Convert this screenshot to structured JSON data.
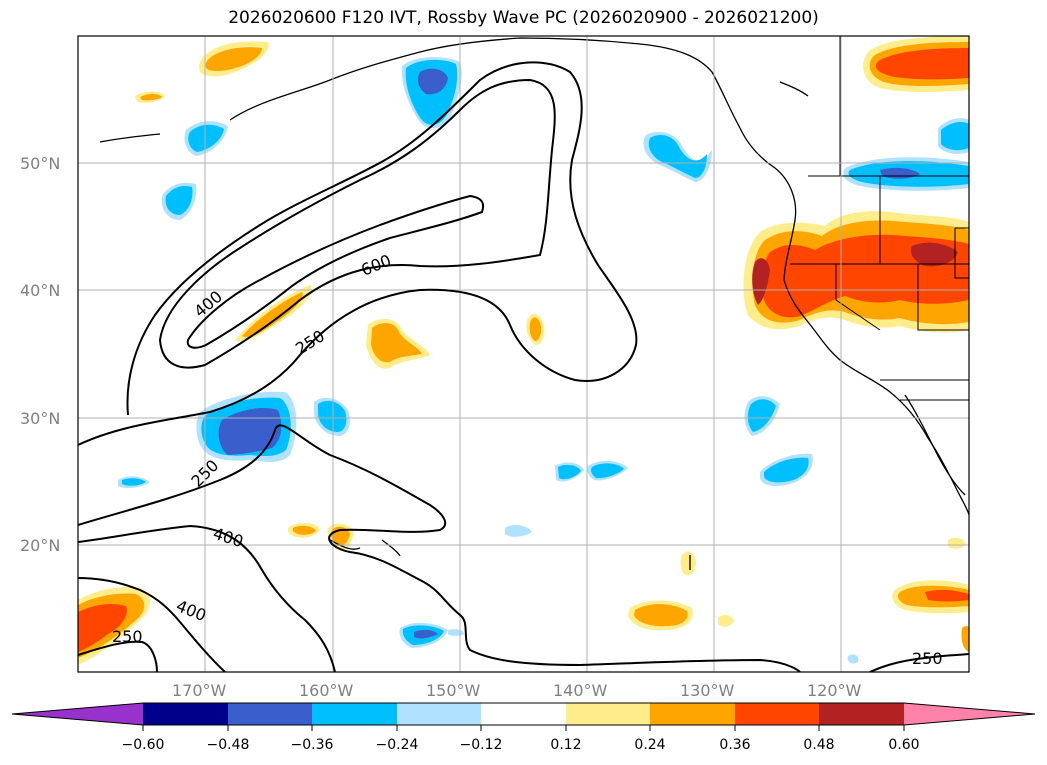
{
  "title": "2026020600 F120 IVT, Rossby Wave PC (2026020900 - 2026021200)",
  "map": {
    "lat_labels": [
      "50°N",
      "40°N",
      "30°N",
      "20°N"
    ],
    "lon_labels": [
      "170°W",
      "160°W",
      "150°W",
      "140°W",
      "130°W",
      "120°W"
    ],
    "contour_labels": [
      "600",
      "400",
      "250",
      "250",
      "400",
      "400",
      "250",
      "250"
    ]
  },
  "colorbar": {
    "tick_labels": [
      "−0.60",
      "−0.48",
      "−0.36",
      "−0.24",
      "−0.12",
      "0.12",
      "0.24",
      "0.36",
      "0.48",
      "0.60"
    ],
    "colors": [
      "#9932CC",
      "#00008B",
      "#3A5FCD",
      "#00BFFF",
      "#B0E2FF",
      "#FFFFFF",
      "#FFEC8B",
      "#FFA500",
      "#FF4500",
      "#B22222",
      "#FF82AB"
    ]
  }
}
